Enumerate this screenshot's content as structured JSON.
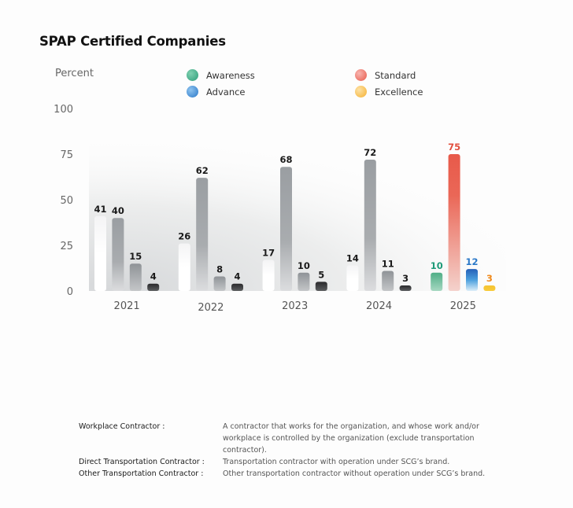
{
  "chart_data": {
    "type": "bar",
    "title": "SPAP Certified Companies",
    "xlabel": "",
    "ylabel": "Percent",
    "ylim": [
      0,
      100
    ],
    "yticks": [
      0,
      25,
      50,
      75,
      100
    ],
    "grid": false,
    "legend_position": "top",
    "categories": [
      "2021",
      "2022",
      "2023",
      "2024",
      "2025"
    ],
    "series": [
      {
        "name": "Awareness",
        "values": [
          41,
          26,
          17,
          14,
          10
        ],
        "color": "#2e9e7a"
      },
      {
        "name": "Standard",
        "values": [
          40,
          62,
          68,
          72,
          75
        ],
        "color": "#e85a4a"
      },
      {
        "name": "Advance",
        "values": [
          15,
          8,
          10,
          11,
          12
        ],
        "color": "#2a78c8"
      },
      {
        "name": "Excellence",
        "values": [
          4,
          4,
          5,
          3,
          3
        ],
        "color": "#f5b82e"
      }
    ],
    "highlight_category": "2025"
  },
  "legend": [
    {
      "name": "Awareness",
      "color": "#3aa882"
    },
    {
      "name": "Standard",
      "color": "#ec6a62"
    },
    {
      "name": "Advance",
      "color": "#3a86cf"
    },
    {
      "name": "Excellence",
      "color": "#f8c35a"
    }
  ],
  "definitions": [
    {
      "term": "Workplace Contractor :",
      "desc": "A contractor that works for the organization, and whose work and/or workplace is controlled by the organization (exclude transportation contractor)."
    },
    {
      "term": "Direct Transportation Contractor :",
      "desc": "Transportation contractor with operation under SCG’s brand."
    },
    {
      "term": "Other Transportation Contractor :",
      "desc": "Other transportation contractor without operation under SCG’s brand."
    }
  ]
}
